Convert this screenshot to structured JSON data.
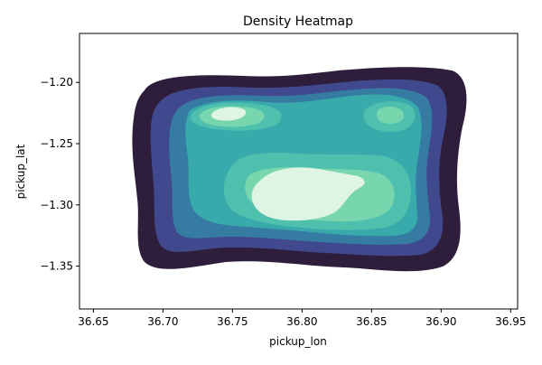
{
  "chart_data": {
    "type": "heatmap",
    "subtype": "kde-density-contours",
    "title": "Density Heatmap",
    "xlabel": "pickup_lon",
    "ylabel": "pickup_lat",
    "xlim": [
      36.64,
      36.955
    ],
    "ylim": [
      -1.385,
      -1.16
    ],
    "x_ticks": [
      36.65,
      36.7,
      36.75,
      36.8,
      36.85,
      36.9,
      36.95
    ],
    "x_tick_labels": [
      "36.65",
      "36.70",
      "36.75",
      "36.80",
      "36.85",
      "36.90",
      "36.95"
    ],
    "y_ticks": [
      -1.2,
      -1.25,
      -1.3,
      -1.35
    ],
    "y_tick_labels": [
      "−1.20",
      "−1.25",
      "−1.30",
      "−1.35"
    ],
    "grid": false,
    "colormap": "mako",
    "levels": [
      {
        "level": 1,
        "color": "#2e1e3b"
      },
      {
        "level": 2,
        "color": "#40498e"
      },
      {
        "level": 3,
        "color": "#357ba2"
      },
      {
        "level": 4,
        "color": "#38aaac"
      },
      {
        "level": 5,
        "color": "#4fc0ad"
      },
      {
        "level": 6,
        "color": "#78d6ae"
      },
      {
        "level": 7,
        "color": "#def5e5"
      }
    ],
    "density_peaks": [
      {
        "lon": 36.8,
        "lat": -1.293,
        "relative_density": 1.0
      },
      {
        "lon": 36.755,
        "lat": -1.227,
        "relative_density": 0.85
      },
      {
        "lon": 36.862,
        "lat": -1.228,
        "relative_density": 0.55
      }
    ],
    "support_extent": {
      "lon": [
        36.69,
        36.915
      ],
      "lat": [
        -1.358,
        -1.19
      ]
    }
  }
}
